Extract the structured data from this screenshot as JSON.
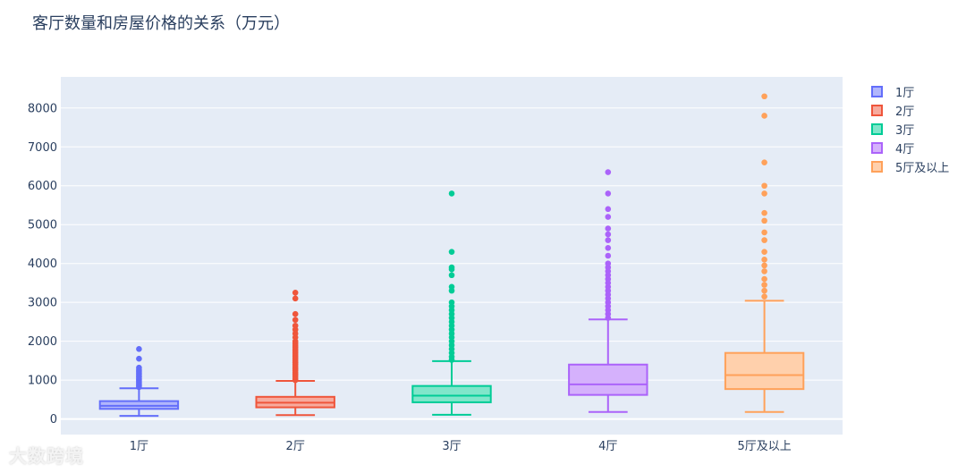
{
  "title": "客厅数量和房屋价格的关系（万元）",
  "watermark": "大数跨境",
  "chart_data": {
    "type": "box",
    "title": "客厅数量和房屋价格的关系（万元）",
    "categories": [
      "1厅",
      "2厅",
      "3厅",
      "4厅",
      "5厅及以上"
    ],
    "ylim": [
      -400,
      8800
    ],
    "yticks": [
      0,
      1000,
      2000,
      3000,
      4000,
      5000,
      6000,
      7000,
      8000
    ],
    "grid": true,
    "legend_position": "top-right",
    "series": [
      {
        "name": "1厅",
        "color": "#636efa",
        "fill": "#b1b6fc",
        "min": 80,
        "q1": 260,
        "median": 340,
        "q3": 460,
        "max": 790,
        "outliers": [
          820,
          850,
          880,
          910,
          950,
          980,
          1010,
          1040,
          1080,
          1110,
          1150,
          1190,
          1230,
          1270,
          1320,
          1550,
          1800
        ]
      },
      {
        "name": "2厅",
        "color": "#ef553b",
        "fill": "#f7aa9d",
        "min": 100,
        "q1": 300,
        "median": 420,
        "q3": 570,
        "max": 980,
        "outliers": [
          1000,
          1050,
          1100,
          1150,
          1200,
          1250,
          1300,
          1350,
          1400,
          1450,
          1500,
          1550,
          1600,
          1650,
          1700,
          1750,
          1800,
          1850,
          1900,
          1950,
          2000,
          2100,
          2200,
          2300,
          2400,
          2550,
          2700,
          3100,
          3250
        ]
      },
      {
        "name": "3厅",
        "color": "#00cc96",
        "fill": "#80e6ca",
        "min": 110,
        "q1": 430,
        "median": 600,
        "q3": 850,
        "max": 1490,
        "outliers": [
          1520,
          1600,
          1700,
          1800,
          1900,
          2000,
          2100,
          2200,
          2300,
          2400,
          2500,
          2600,
          2700,
          2800,
          2900,
          3000,
          3300,
          3400,
          3700,
          3850,
          3900,
          4300,
          5800
        ]
      },
      {
        "name": "4厅",
        "color": "#ab63fa",
        "fill": "#d5b1fc",
        "min": 180,
        "q1": 620,
        "median": 890,
        "q3": 1400,
        "max": 2560,
        "outliers": [
          2600,
          2700,
          2800,
          2900,
          3000,
          3100,
          3200,
          3300,
          3400,
          3500,
          3600,
          3700,
          3800,
          3900,
          4000,
          4200,
          4400,
          4600,
          4750,
          4900,
          5200,
          5400,
          5800,
          6350
        ]
      },
      {
        "name": "5厅及以上",
        "color": "#ffa15a",
        "fill": "#ffd0ac",
        "min": 180,
        "q1": 770,
        "median": 1130,
        "q3": 1700,
        "max": 3040,
        "outliers": [
          3150,
          3300,
          3450,
          3600,
          3800,
          3950,
          4100,
          4300,
          4600,
          4800,
          5100,
          5300,
          5800,
          6000,
          6600,
          7800,
          8300
        ]
      }
    ]
  }
}
